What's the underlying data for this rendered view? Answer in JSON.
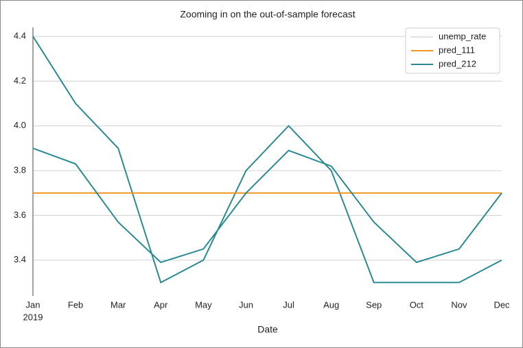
{
  "chart_data": {
    "type": "line",
    "title": "Zooming in on the out-of-sample forecast",
    "xlabel": "Date",
    "categories": [
      "Jan",
      "Feb",
      "Mar",
      "Apr",
      "May",
      "Jun",
      "Jul",
      "Aug",
      "Sep",
      "Oct",
      "Nov",
      "Dec"
    ],
    "year_label": "2019",
    "series": [
      {
        "name": "unemp_rate",
        "color": "#2a8a8f",
        "legend_style": "dotted",
        "values": [
          4.4,
          4.1,
          3.9,
          3.3,
          3.4,
          3.8,
          4.0,
          3.8,
          3.3,
          3.3,
          3.3,
          3.4
        ]
      },
      {
        "name": "pred_111",
        "color": "#f0961e",
        "values": [
          3.7,
          3.7,
          3.7,
          3.7,
          3.7,
          3.7,
          3.7,
          3.7,
          3.7,
          3.7,
          3.7,
          3.7
        ]
      },
      {
        "name": "pred_212",
        "color": "#2a8a8f",
        "values": [
          3.9,
          3.83,
          3.57,
          3.39,
          3.45,
          3.7,
          3.89,
          3.82,
          3.57,
          3.39,
          3.45,
          3.7
        ]
      }
    ],
    "ylim": [
      3.24,
      4.44
    ],
    "yticks": [
      3.4,
      3.6,
      3.8,
      {
        "value": 4,
        "label": "4.0"
      },
      4.2,
      4.4
    ],
    "grid": true,
    "legend": "upper right"
  }
}
